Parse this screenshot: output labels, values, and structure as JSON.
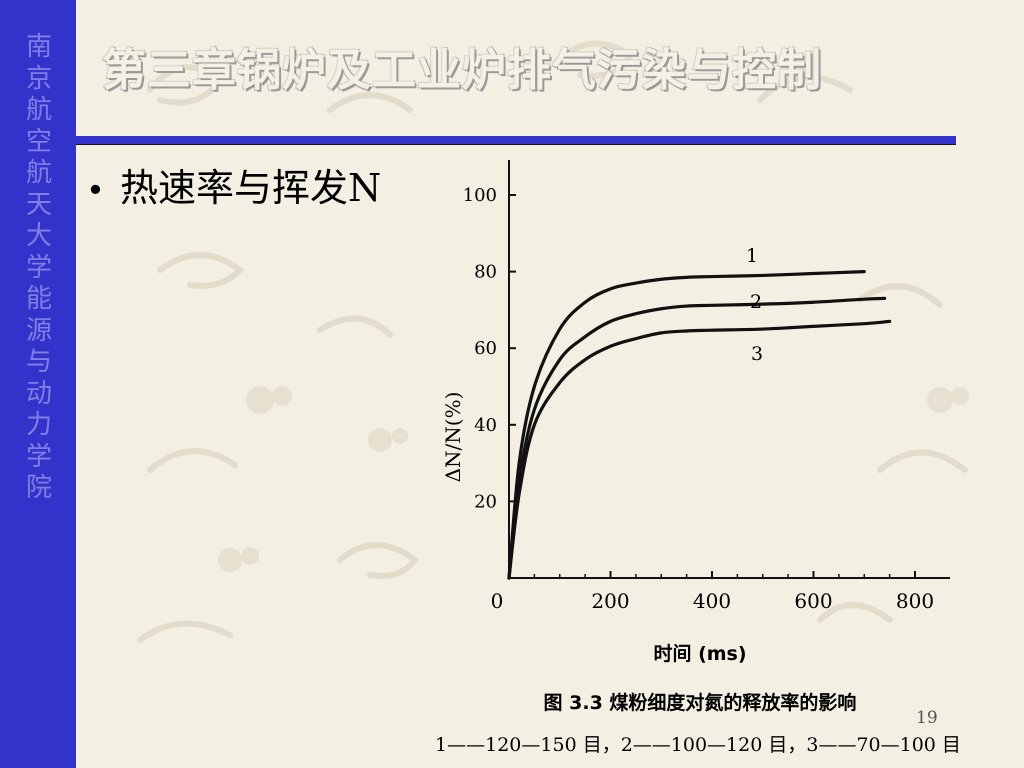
{
  "sidebar": {
    "text": "南京航空航天大学能源与动力学院"
  },
  "header": {
    "title": "第三章锅炉及工业炉排气污染与控制"
  },
  "content": {
    "bullet_text": "热速率与挥发N"
  },
  "footer": {
    "slide_number": "19"
  },
  "colors": {
    "sidebar": "#3333cc",
    "sidebar_text": "#7f7fe6",
    "background": "#f3efe2"
  },
  "chart_data": {
    "type": "line",
    "title": "图 3.3   煤粉细度对氮的释放率的影响",
    "legend_text": "1——120—150 目，2——100—120 目，3——70—100 目",
    "xlabel": "时间 (ms)",
    "ylabel": "ΔN/N(%)",
    "xlim": [
      0,
      800
    ],
    "ylim": [
      0,
      100
    ],
    "x_ticks": [
      "0",
      "200",
      "400",
      "600",
      "800"
    ],
    "y_ticks": [
      "20",
      "40",
      "60",
      "80",
      "100"
    ],
    "grid": false,
    "series": [
      {
        "name": "1",
        "x": [
          0,
          20,
          50,
          100,
          150,
          200,
          250,
          300,
          350,
          400,
          500,
          600,
          700
        ],
        "y": [
          0,
          30,
          50,
          65,
          72,
          75.5,
          77,
          78,
          78.5,
          78.7,
          79,
          79.5,
          80
        ]
      },
      {
        "name": "2",
        "x": [
          0,
          20,
          50,
          100,
          150,
          200,
          250,
          300,
          350,
          400,
          500,
          600,
          700,
          740
        ],
        "y": [
          0,
          25,
          44,
          57,
          63,
          67,
          69,
          70.3,
          71,
          71.2,
          71.5,
          72,
          72.8,
          73
        ]
      },
      {
        "name": "3",
        "x": [
          0,
          20,
          50,
          100,
          150,
          200,
          250,
          300,
          350,
          400,
          500,
          600,
          700,
          750
        ],
        "y": [
          0,
          22,
          40,
          51,
          57,
          60.5,
          62.5,
          64,
          64.5,
          64.7,
          65,
          65.7,
          66.4,
          67
        ]
      }
    ]
  }
}
